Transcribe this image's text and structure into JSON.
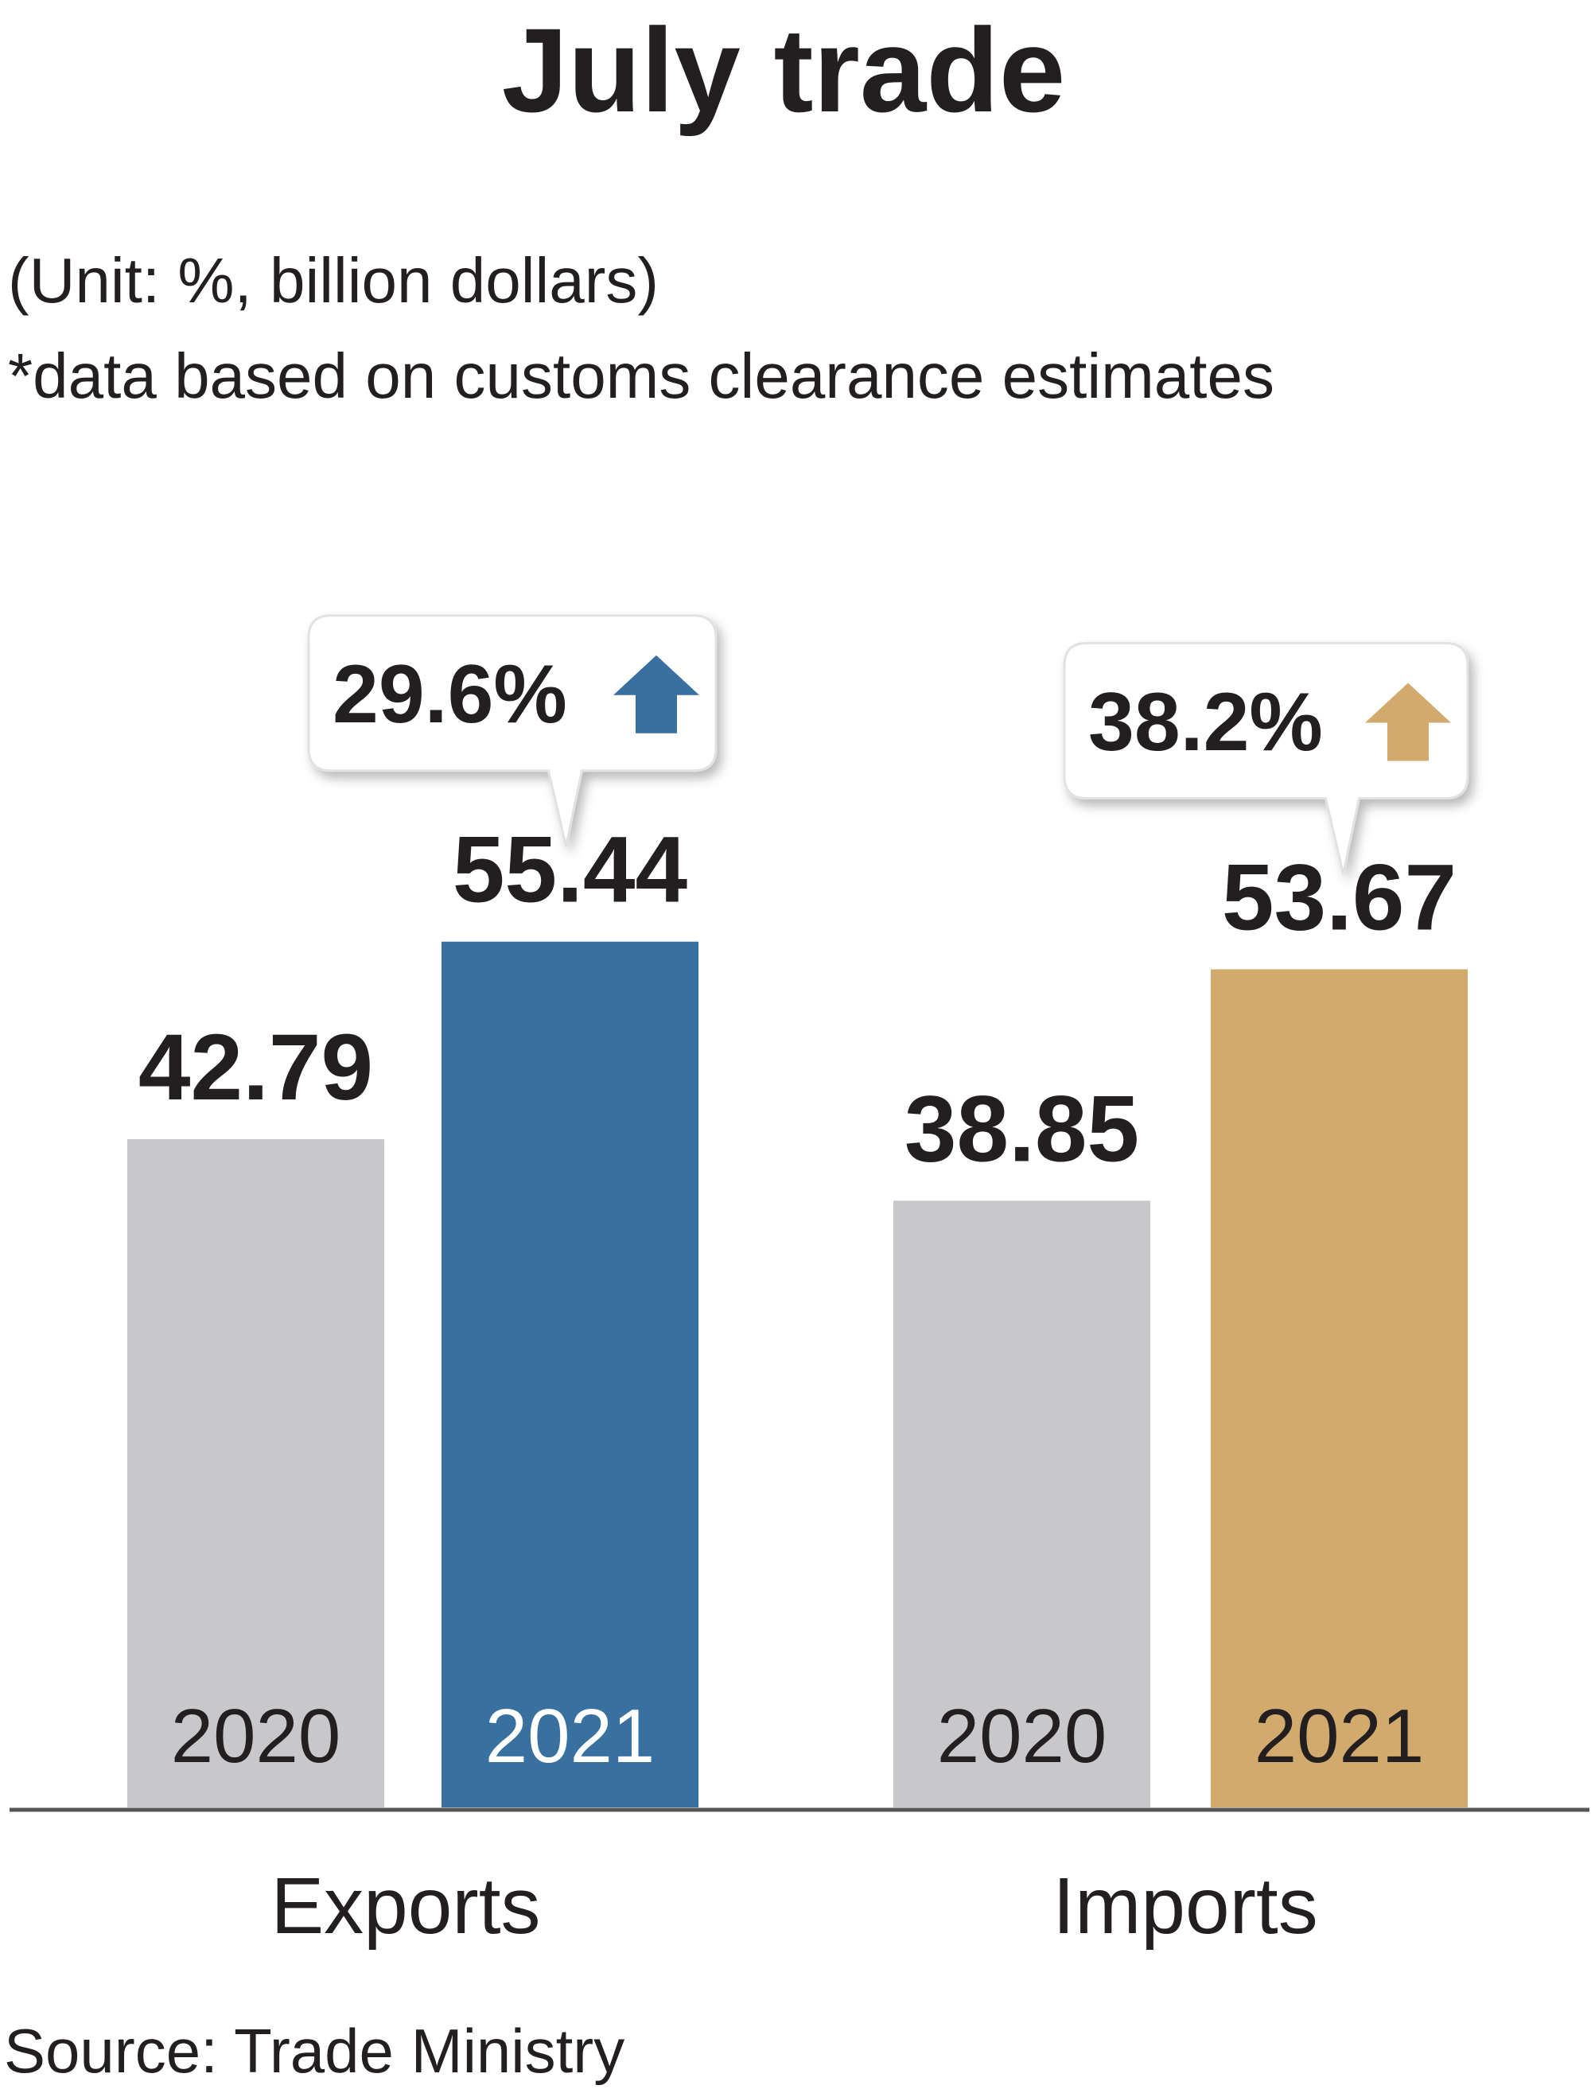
{
  "chart_data": {
    "type": "bar",
    "title": "July trade",
    "subtitle": "(Unit: %, billion dollars)",
    "note": "*data based on customs clearance estimates",
    "source": "Source: Trade Ministry",
    "categories": [
      "Exports",
      "Imports"
    ],
    "groups": [
      {
        "category": "Exports",
        "change": "29.6%",
        "bars": [
          {
            "year": "2020",
            "value": 42.79,
            "label": "42.79",
            "color": "#c8c8ca",
            "text_color": "#231f20"
          },
          {
            "year": "2021",
            "value": 55.44,
            "label": "55.44",
            "color": "#3870a0",
            "text_color": "#ffffff"
          }
        ],
        "accent": "#3870a0"
      },
      {
        "category": "Imports",
        "change": "38.2%",
        "bars": [
          {
            "year": "2020",
            "value": 38.85,
            "label": "38.85",
            "color": "#c8c8ca",
            "text_color": "#231f20"
          },
          {
            "year": "2021",
            "value": 53.67,
            "label": "53.67",
            "color": "#d2aa6d",
            "text_color": "#231f20"
          }
        ],
        "accent": "#d2aa6d"
      }
    ],
    "ylim": [
      0,
      58
    ],
    "grid": false
  }
}
